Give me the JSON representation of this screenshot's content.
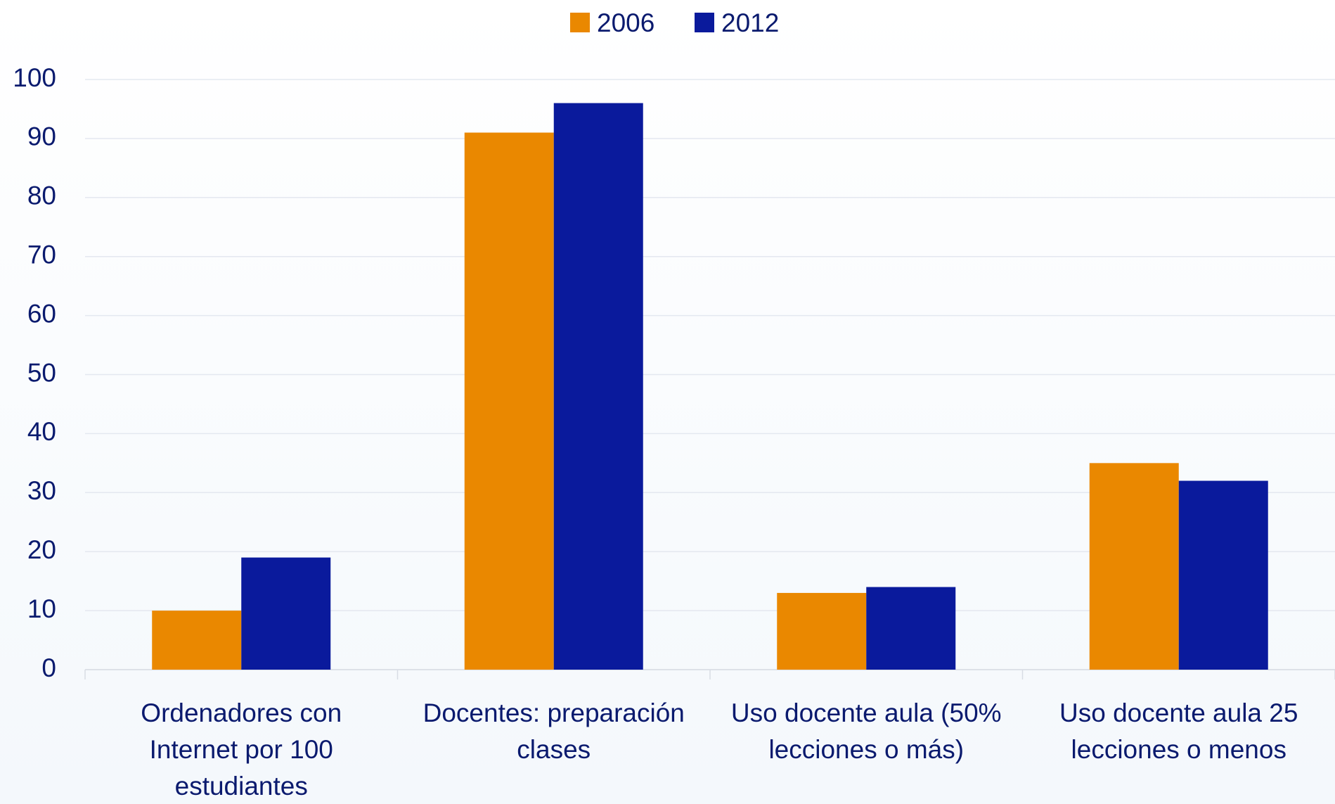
{
  "chart_data": {
    "type": "bar",
    "categories": [
      "Ordenadores con Internet por 100 estudiantes",
      "Docentes: preparación clases",
      "Uso docente aula (50% lecciones o más)",
      "Uso docente aula 25 lecciones o menos"
    ],
    "series": [
      {
        "name": "2006",
        "color": "#ea8800",
        "values": [
          10,
          91,
          13,
          35
        ]
      },
      {
        "name": "2012",
        "color": "#0a1a9c",
        "values": [
          19,
          96,
          14,
          32
        ]
      }
    ],
    "ylim": [
      0,
      100
    ],
    "yticks": [
      0,
      10,
      20,
      30,
      40,
      50,
      60,
      70,
      80,
      90,
      100
    ],
    "grid": true,
    "legend": "top"
  }
}
